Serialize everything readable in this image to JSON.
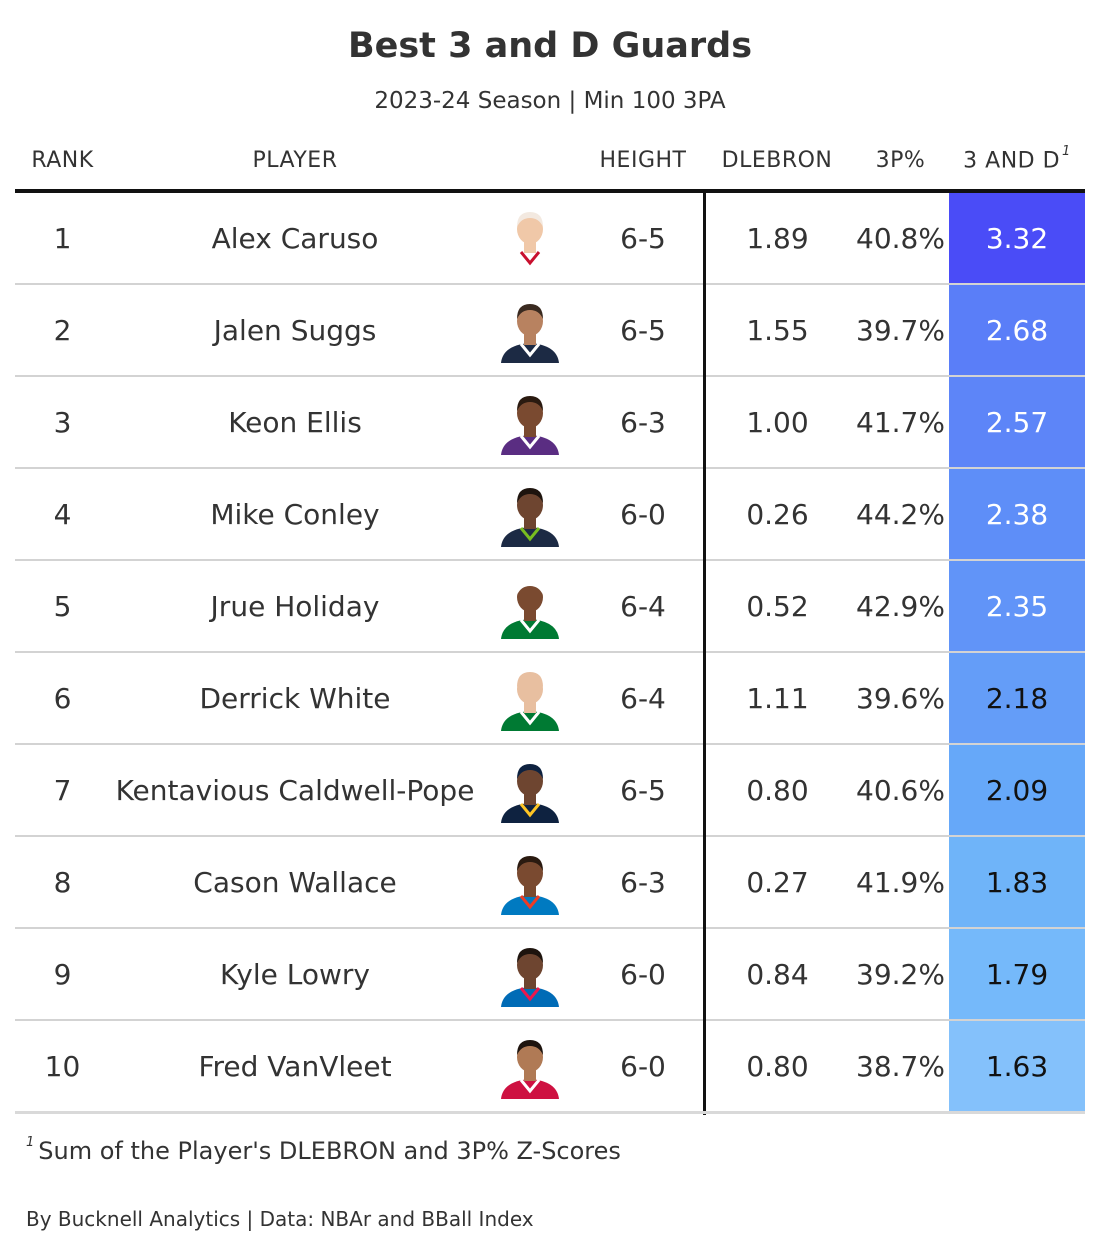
{
  "title": "Best 3 and D Guards",
  "subtitle": "2023-24 Season | Min 100 3PA",
  "columns": {
    "rank": "RANK",
    "player": "PLAYER",
    "height": "HEIGHT",
    "dlebron": "DLEBRON",
    "three_pct": "3P%",
    "score": "3 AND D",
    "score_footnote_mark": "1"
  },
  "rows": [
    {
      "rank": "1",
      "player": "Alex Caruso",
      "height": "6-5",
      "dlebron": "1.89",
      "three_pct": "40.8%",
      "score": "3.32",
      "score_value": 3.32,
      "score_color": "#4a4cf7",
      "score_text_color": "#ffffff",
      "photo": {
        "skin": "#f0c8a8",
        "hair": "#f3e9e0",
        "jersey": "#ffffff",
        "trim": "#c8102e"
      }
    },
    {
      "rank": "2",
      "player": "Jalen Suggs",
      "height": "6-5",
      "dlebron": "1.55",
      "three_pct": "39.7%",
      "score": "2.68",
      "score_value": 2.68,
      "score_color": "#5a7ef8",
      "score_text_color": "#ffffff",
      "photo": {
        "skin": "#b88260",
        "hair": "#3a2a20",
        "jersey": "#1c2a44",
        "trim": "#ffffff"
      }
    },
    {
      "rank": "3",
      "player": "Keon Ellis",
      "height": "6-3",
      "dlebron": "1.00",
      "three_pct": "41.7%",
      "score": "2.57",
      "score_value": 2.57,
      "score_color": "#5d85f8",
      "score_text_color": "#ffffff",
      "photo": {
        "skin": "#7a4a30",
        "hair": "#2a1a10",
        "jersey": "#5a2d82",
        "trim": "#ffffff"
      }
    },
    {
      "rank": "4",
      "player": "Mike Conley",
      "height": "6-0",
      "dlebron": "0.26",
      "three_pct": "44.2%",
      "score": "2.38",
      "score_value": 2.38,
      "score_color": "#5e8ef8",
      "score_text_color": "#ffffff",
      "photo": {
        "skin": "#6e4530",
        "hair": "#1e140e",
        "jersey": "#1c2a44",
        "trim": "#78be20"
      }
    },
    {
      "rank": "5",
      "player": "Jrue Holiday",
      "height": "6-4",
      "dlebron": "0.52",
      "three_pct": "42.9%",
      "score": "2.35",
      "score_value": 2.35,
      "score_color": "#6194f8",
      "score_text_color": "#ffffff",
      "photo": {
        "skin": "#7a4a30",
        "hair": "#ffffff",
        "jersey": "#007a33",
        "trim": "#ffffff"
      }
    },
    {
      "rank": "6",
      "player": "Derrick White",
      "height": "6-4",
      "dlebron": "1.11",
      "three_pct": "39.6%",
      "score": "2.18",
      "score_value": 2.18,
      "score_color": "#649df8",
      "score_text_color": "#111111",
      "photo": {
        "skin": "#e8bfa0",
        "hair": "#e8bfa0",
        "jersey": "#007a33",
        "trim": "#ffffff"
      }
    },
    {
      "rank": "7",
      "player": "Kentavious Caldwell-Pope",
      "height": "6-5",
      "dlebron": "0.80",
      "three_pct": "40.6%",
      "score": "2.09",
      "score_value": 2.09,
      "score_color": "#66a8f9",
      "score_text_color": "#111111",
      "photo": {
        "skin": "#6e4530",
        "hair": "#0e2240",
        "jersey": "#0e2240",
        "trim": "#fec524"
      }
    },
    {
      "rank": "8",
      "player": "Cason Wallace",
      "height": "6-3",
      "dlebron": "0.27",
      "three_pct": "41.9%",
      "score": "1.83",
      "score_value": 1.83,
      "score_color": "#6fb4f9",
      "score_text_color": "#111111",
      "photo": {
        "skin": "#7a4a30",
        "hair": "#2a1a10",
        "jersey": "#007ac1",
        "trim": "#ef3b24"
      }
    },
    {
      "rank": "9",
      "player": "Kyle Lowry",
      "height": "6-0",
      "dlebron": "0.84",
      "three_pct": "39.2%",
      "score": "1.79",
      "score_value": 1.79,
      "score_color": "#75b9fa",
      "score_text_color": "#111111",
      "photo": {
        "skin": "#6e4530",
        "hair": "#1e140e",
        "jersey": "#006bb6",
        "trim": "#ed174c"
      }
    },
    {
      "rank": "10",
      "player": "Fred VanVleet",
      "height": "6-0",
      "dlebron": "0.80",
      "three_pct": "38.7%",
      "score": "1.63",
      "score_value": 1.63,
      "score_color": "#84c1fb",
      "score_text_color": "#111111",
      "photo": {
        "skin": "#b07a55",
        "hair": "#1e140e",
        "jersey": "#ce1141",
        "trim": "#ffffff"
      }
    }
  ],
  "footnote": {
    "mark": "1",
    "text": "Sum of the Player's DLEBRON and 3P% Z-Scores"
  },
  "credit": "By Bucknell Analytics | Data: NBAr and BBall Index",
  "chart_data": {
    "type": "table",
    "title": "Best 3 and D Guards",
    "subtitle": "2023-24 Season | Min 100 3PA",
    "columns": [
      "RANK",
      "PLAYER",
      "HEIGHT",
      "DLEBRON",
      "3P%",
      "3 AND D"
    ],
    "rows": [
      [
        1,
        "Alex Caruso",
        "6-5",
        1.89,
        40.8,
        3.32
      ],
      [
        2,
        "Jalen Suggs",
        "6-5",
        1.55,
        39.7,
        2.68
      ],
      [
        3,
        "Keon Ellis",
        "6-3",
        1.0,
        41.7,
        2.57
      ],
      [
        4,
        "Mike Conley",
        "6-0",
        0.26,
        44.2,
        2.38
      ],
      [
        5,
        "Jrue Holiday",
        "6-4",
        0.52,
        42.9,
        2.35
      ],
      [
        6,
        "Derrick White",
        "6-4",
        1.11,
        39.6,
        2.18
      ],
      [
        7,
        "Kentavious Caldwell-Pope",
        "6-5",
        0.8,
        40.6,
        2.09
      ],
      [
        8,
        "Cason Wallace",
        "6-3",
        0.27,
        41.9,
        1.83
      ],
      [
        9,
        "Kyle Lowry",
        "6-0",
        0.84,
        39.2,
        1.79
      ],
      [
        10,
        "Fred VanVleet",
        "6-0",
        0.8,
        38.7,
        1.63
      ]
    ]
  }
}
